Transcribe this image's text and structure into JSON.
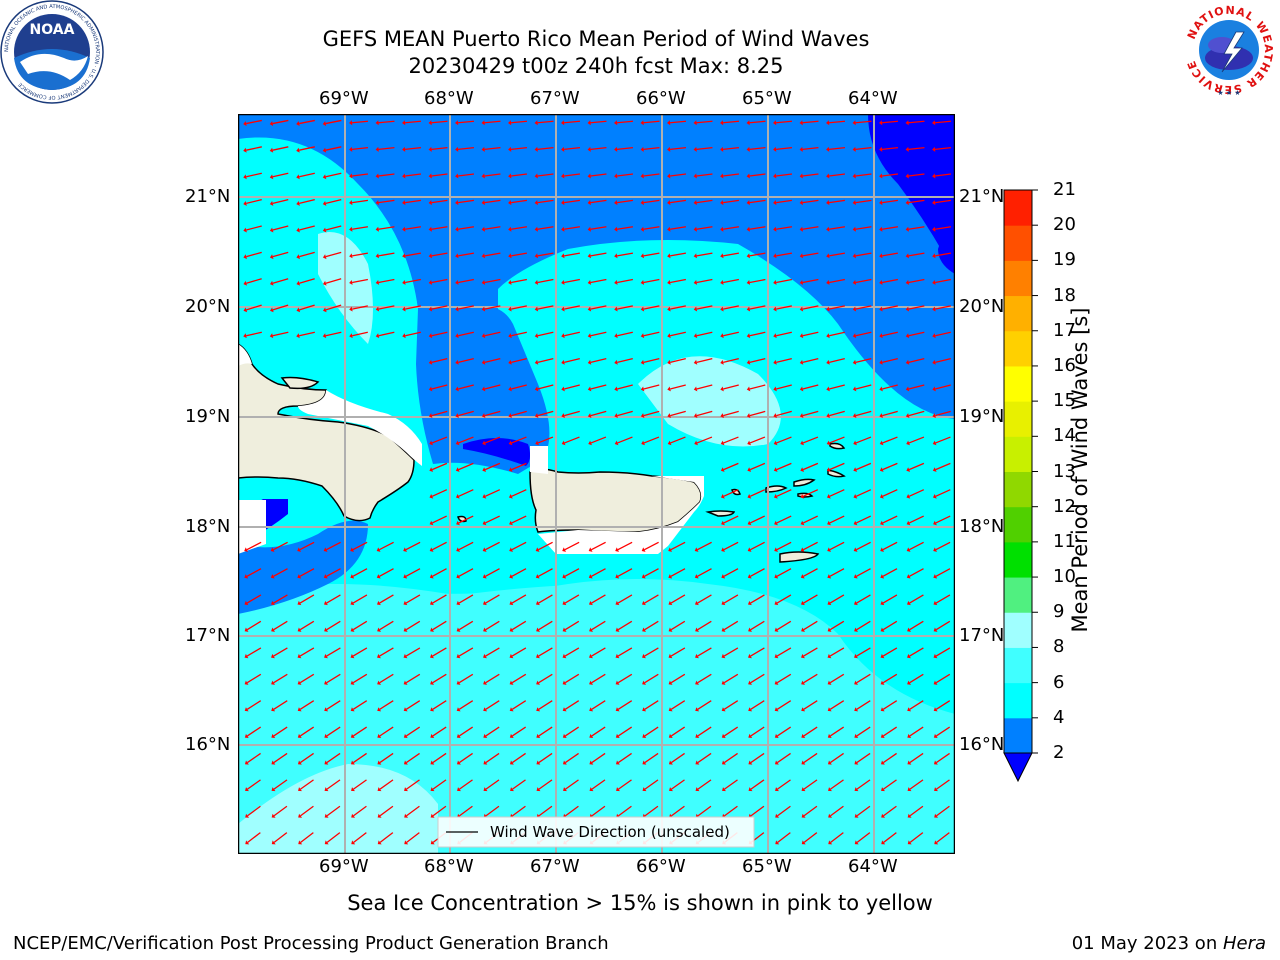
{
  "title": {
    "line1": "GEFS MEAN Puerto Rico Mean Period of Wind Waves",
    "line2": "20230429 t00z 240h fcst   Max: 8.25"
  },
  "logos": {
    "left": {
      "text": "NOAA",
      "ring_text": "NATIONAL OCEANIC AND ATMOSPHERIC ADMINISTRATION · U.S. DEPARTMENT OF COMMERCE",
      "icon": "noaa-logo"
    },
    "right": {
      "ring_text": "NATIONAL WEATHER SERVICE",
      "icon": "nws-logo"
    }
  },
  "map": {
    "lon_labels": [
      "69°W",
      "68°W",
      "67°W",
      "66°W",
      "65°W",
      "64°W"
    ],
    "lat_labels": [
      "21°N",
      "20°N",
      "19°N",
      "18°N",
      "17°N",
      "16°N"
    ],
    "legend_label": "Wind Wave Direction (unscaled)",
    "arrow_color": "#ff0000",
    "land_color": "#efeedd",
    "colors": {
      "band_2_4": "#0080ff",
      "band_4_6": "#00ffff",
      "band_6_8": "#40ffff",
      "band_8_9": "#a0ffff",
      "below_2": "#0000ff"
    }
  },
  "colorbar": {
    "label": "Mean Period of Wind Waves [s]",
    "ticks": [
      "2",
      "4",
      "6",
      "8",
      "9",
      "10",
      "11",
      "12",
      "13",
      "14",
      "15",
      "16",
      "17",
      "18",
      "19",
      "20",
      "21"
    ],
    "colors": [
      "#0080ff",
      "#00ffff",
      "#40ffff",
      "#a0ffff",
      "#50f080",
      "#00e000",
      "#50d000",
      "#90d800",
      "#c8f000",
      "#e8f000",
      "#ffff00",
      "#ffd000",
      "#ffb000",
      "#ff8000",
      "#ff5000",
      "#ff2000"
    ],
    "under_color": "#0000ff",
    "over_color": "#ff0000"
  },
  "subtitle": "Sea Ice Concentration > 15% is shown in pink to yellow",
  "footer": {
    "left": "NCEP/EMC/Verification Post Processing Product Generation Branch",
    "right_prefix": "01 May 2023 on ",
    "right_host": "Hera"
  }
}
